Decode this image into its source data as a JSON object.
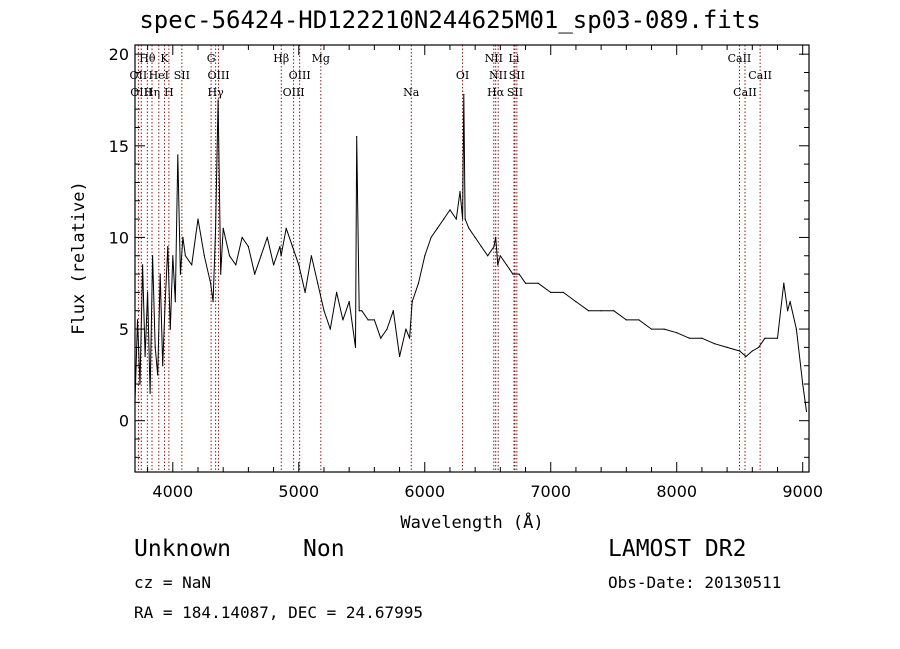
{
  "header": {
    "title": "spec-56424-HD122210N244625M01_sp03-089.fits"
  },
  "info": {
    "object_class": "Unknown",
    "object_subclass": "Non",
    "survey": "LAMOST DR2",
    "cz": "cz = NaN",
    "obs_date": "Obs-Date: 20130511",
    "radec": "RA = 184.14087, DEC =  24.67995"
  },
  "chart_data": {
    "type": "line",
    "title": "spec-56424-HD122210N244625M01_sp03-089.fits",
    "xlabel": "Wavelength (Å)",
    "ylabel": "Flux (relative)",
    "xlim": [
      3700,
      9050
    ],
    "ylim": [
      -2.8,
      20.5
    ],
    "xticks": [
      4000,
      5000,
      6000,
      7000,
      8000,
      9000
    ],
    "yticks": [
      0,
      5,
      10,
      15,
      20
    ],
    "grid": false,
    "line_color": "#000000",
    "marker_color": "#8b1a1a",
    "series": [
      {
        "x": [
          3700,
          3720,
          3740,
          3760,
          3780,
          3800,
          3820,
          3840,
          3860,
          3880,
          3900,
          3920,
          3940,
          3960,
          3980,
          4000,
          4020,
          4040,
          4060,
          4080,
          4100,
          4150,
          4200,
          4250,
          4300,
          4320,
          4340,
          4360,
          4380,
          4400,
          4450,
          4500,
          4550,
          4600,
          4650,
          4700,
          4750,
          4800,
          4850,
          4860,
          4900,
          4950,
          5000,
          5050,
          5100,
          5150,
          5200,
          5250,
          5300,
          5350,
          5400,
          5450,
          5460,
          5480,
          5500,
          5550,
          5600,
          5650,
          5700,
          5750,
          5800,
          5850,
          5880,
          5900,
          5950,
          6000,
          6050,
          6100,
          6150,
          6200,
          6250,
          6280,
          6300,
          6310,
          6320,
          6350,
          6400,
          6450,
          6500,
          6550,
          6563,
          6580,
          6600,
          6650,
          6700,
          6750,
          6800,
          6900,
          7000,
          7100,
          7200,
          7300,
          7400,
          7500,
          7600,
          7700,
          7800,
          7900,
          8000,
          8100,
          8200,
          8300,
          8400,
          8500,
          8550,
          8600,
          8650,
          8700,
          8800,
          8850,
          8880,
          8900,
          8950,
          9000,
          9030
        ],
        "y": [
          1.0,
          5.5,
          2.0,
          8.5,
          3.5,
          7.0,
          1.5,
          9.0,
          4.0,
          2.5,
          8.0,
          3.0,
          6.5,
          9.5,
          5.0,
          9.0,
          6.5,
          14.5,
          8.0,
          10.0,
          9.0,
          8.5,
          11.0,
          9.0,
          7.5,
          6.5,
          10.5,
          17.5,
          8.0,
          10.5,
          9.0,
          8.5,
          10.0,
          9.5,
          8.0,
          9.0,
          10.0,
          8.5,
          9.5,
          9.0,
          10.5,
          9.5,
          8.5,
          7.0,
          9.0,
          7.5,
          6.0,
          5.0,
          7.0,
          5.5,
          6.5,
          4.0,
          15.5,
          6.0,
          6.0,
          5.5,
          5.5,
          4.5,
          5.0,
          6.0,
          3.5,
          5.0,
          4.5,
          6.5,
          7.5,
          9.0,
          10.0,
          10.5,
          11.0,
          11.5,
          11.0,
          12.5,
          11.0,
          17.8,
          11.0,
          10.5,
          10.0,
          9.5,
          9.0,
          9.5,
          10.0,
          8.5,
          9.0,
          8.5,
          8.0,
          8.0,
          7.5,
          7.5,
          7.0,
          7.0,
          6.5,
          6.0,
          6.0,
          6.0,
          5.5,
          5.5,
          5.0,
          5.0,
          4.8,
          4.5,
          4.5,
          4.2,
          4.0,
          3.8,
          3.5,
          3.8,
          4.0,
          4.5,
          4.5,
          7.5,
          6.0,
          6.5,
          5.0,
          2.0,
          0.5
        ]
      }
    ],
    "lines": [
      {
        "wave": 3727,
        "label": "OII",
        "row": 2
      },
      {
        "wave": 3750,
        "label": "OIII",
        "row": 3
      },
      {
        "wave": 3798,
        "label": "Hθ",
        "row": 1
      },
      {
        "wave": 3835,
        "label": "Hη",
        "row": 3
      },
      {
        "wave": 3889,
        "label": "HeI",
        "row": 2
      },
      {
        "wave": 3934,
        "label": "K",
        "row": 1
      },
      {
        "wave": 3969,
        "label": "H",
        "row": 3
      },
      {
        "wave": 4072,
        "label": "SII",
        "row": 2
      },
      {
        "wave": 4304,
        "label": "G",
        "row": 1
      },
      {
        "wave": 4340,
        "label": "Hγ",
        "row": 3
      },
      {
        "wave": 4363,
        "label": "OIII",
        "row": 2
      },
      {
        "wave": 4861,
        "label": "Hβ",
        "row": 1
      },
      {
        "wave": 4959,
        "label": "OIII",
        "row": 3
      },
      {
        "wave": 5007,
        "label": "OIII",
        "row": 2
      },
      {
        "wave": 5175,
        "label": "Mg",
        "row": 1
      },
      {
        "wave": 5893,
        "label": "Na",
        "row": 3
      },
      {
        "wave": 6300,
        "label": "OI",
        "row": 2
      },
      {
        "wave": 6548,
        "label": "NII",
        "row": 1
      },
      {
        "wave": 6563,
        "label": "Hα",
        "row": 3
      },
      {
        "wave": 6583,
        "label": "NII",
        "row": 2
      },
      {
        "wave": 6708,
        "label": "Li",
        "row": 1
      },
      {
        "wave": 6716,
        "label": "SII",
        "row": 3
      },
      {
        "wave": 6731,
        "label": "SII",
        "row": 2
      },
      {
        "wave": 8498,
        "label": "CaII",
        "row": 1
      },
      {
        "wave": 8542,
        "label": "CaII",
        "row": 3
      },
      {
        "wave": 8662,
        "label": "CaII",
        "row": 2
      }
    ]
  }
}
